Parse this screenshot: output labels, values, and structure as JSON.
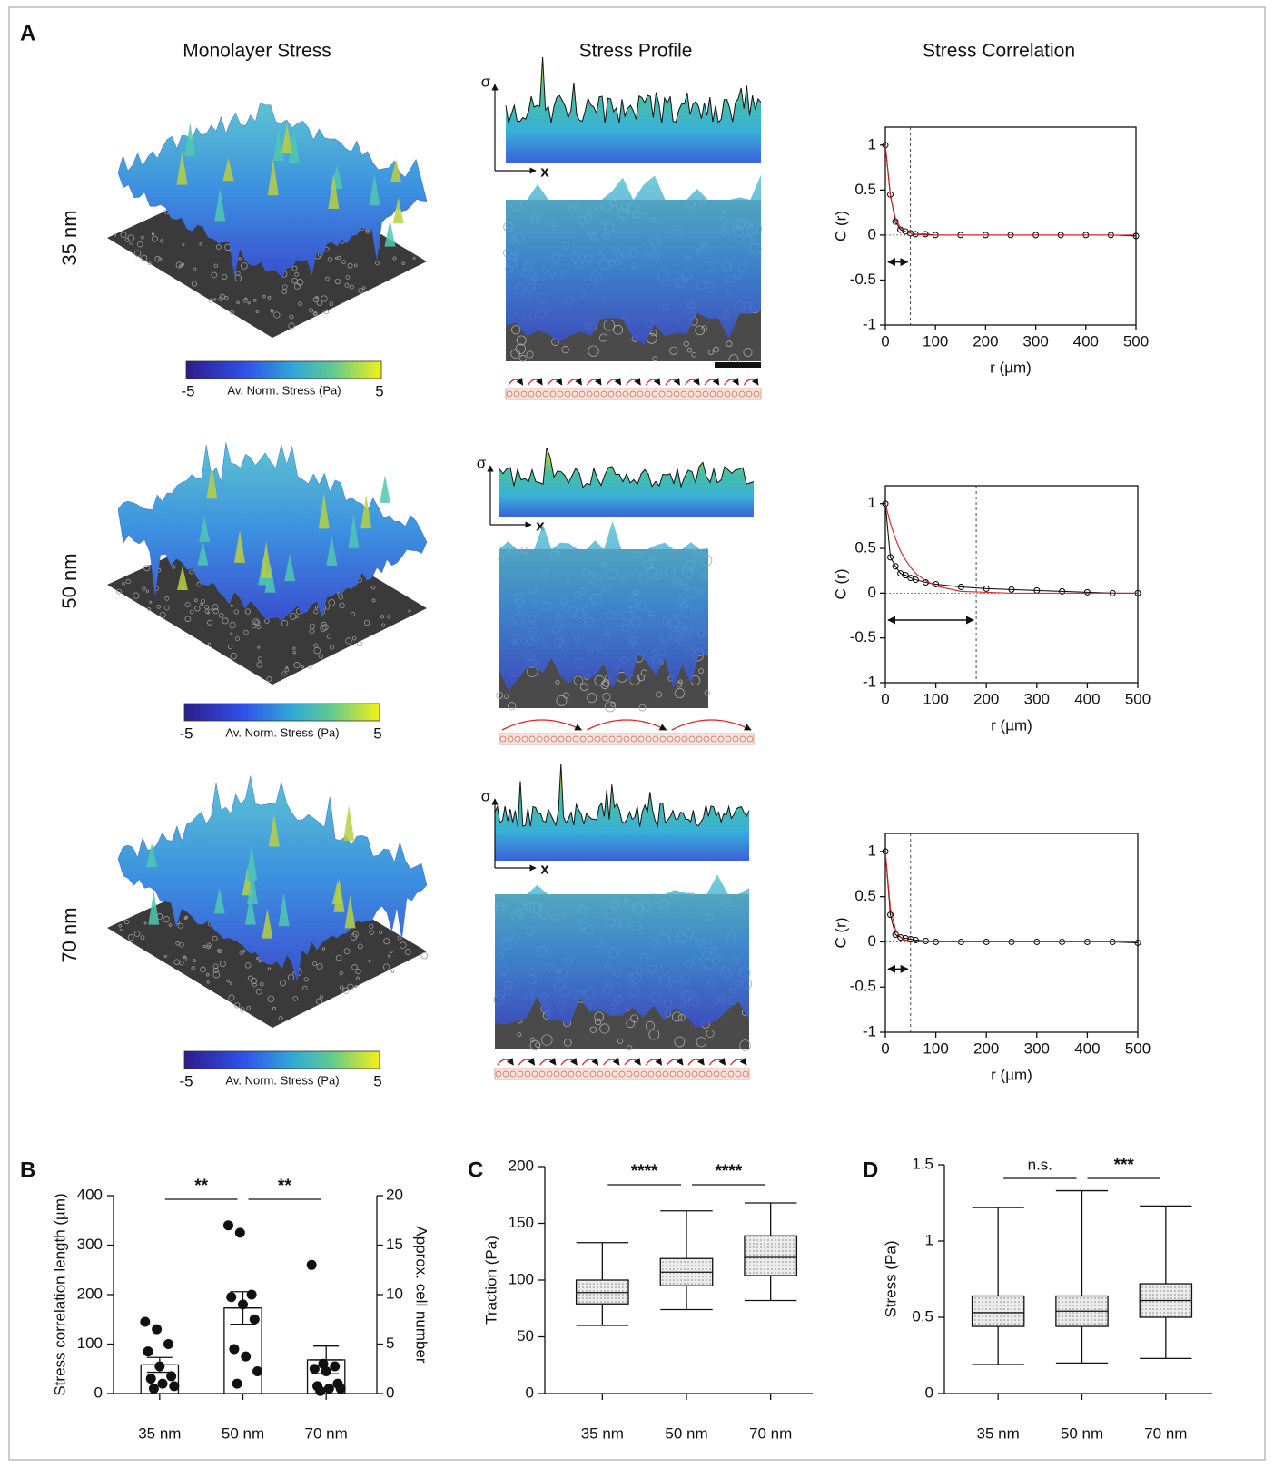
{
  "figure": {
    "panel_labels": [
      "A",
      "B",
      "C",
      "D"
    ],
    "column_titles": [
      "Monolayer Stress",
      "Stress Profile",
      "Stress Correlation"
    ],
    "row_labels": [
      "35 nm",
      "50 nm",
      "70 nm"
    ],
    "colorbars": [
      {
        "lim": [
          -5,
          5
        ],
        "label": "Av. Norm. Stress (Pa)"
      },
      {
        "lim": [
          -5,
          5
        ],
        "label": "Av. Norm. Stress (Pa)"
      },
      {
        "lim": [
          -5,
          5
        ],
        "label": "Av. Norm. Stress (Pa)"
      }
    ],
    "profile_axes": [
      {
        "y": "σ",
        "x": "x"
      },
      {
        "y": "σ",
        "x": "x"
      },
      {
        "y": "σ",
        "x": "x"
      }
    ]
  },
  "chart_data": [
    {
      "type": "line",
      "xlabel": "r (µm)",
      "ylabel": "C (r)",
      "x": [
        0,
        10,
        20,
        30,
        40,
        50,
        60,
        80,
        100,
        150,
        200,
        250,
        300,
        350,
        400,
        450,
        500
      ],
      "series": [
        {
          "color": "#000000",
          "marker": "circle",
          "values": [
            1,
            0.45,
            0.15,
            0.06,
            0.04,
            0.02,
            0.01,
            0.01,
            0,
            0,
            0,
            0,
            0,
            0,
            0,
            0,
            -0.01
          ]
        },
        {
          "color": "#e0201c",
          "values": [
            1,
            0.43,
            0.19,
            0.08,
            0.04,
            0.02,
            0.01,
            0,
            0,
            0,
            0,
            0,
            0,
            0,
            0,
            0,
            0
          ]
        }
      ],
      "correlation_length": 50,
      "xlim": [
        0,
        500
      ],
      "ylim": [
        -1,
        1.2
      ],
      "xticks": [
        0,
        100,
        200,
        300,
        400,
        500
      ],
      "yticks": [
        -1,
        -0.5,
        0,
        0.5,
        1
      ]
    },
    {
      "type": "line",
      "xlabel": "r (µm)",
      "ylabel": "C (r)",
      "x": [
        0,
        10,
        20,
        30,
        40,
        50,
        60,
        80,
        100,
        150,
        200,
        250,
        300,
        350,
        400,
        450,
        500
      ],
      "series": [
        {
          "color": "#000000",
          "marker": "circle",
          "values": [
            1,
            0.4,
            0.3,
            0.22,
            0.2,
            0.17,
            0.15,
            0.12,
            0.1,
            0.07,
            0.05,
            0.04,
            0.03,
            0.02,
            0.01,
            0,
            0
          ]
        },
        {
          "color": "#e0201c",
          "values": [
            1,
            0.78,
            0.61,
            0.47,
            0.37,
            0.29,
            0.22,
            0.14,
            0.08,
            0.02,
            0.01,
            0,
            0,
            0,
            0,
            0,
            0
          ]
        }
      ],
      "correlation_length": 180,
      "xlim": [
        0,
        500
      ],
      "ylim": [
        -1,
        1.2
      ],
      "xticks": [
        0,
        100,
        200,
        300,
        400,
        500
      ],
      "yticks": [
        -1,
        -0.5,
        0,
        0.5,
        1
      ]
    },
    {
      "type": "line",
      "xlabel": "r (µm)",
      "ylabel": "C (r)",
      "x": [
        0,
        10,
        20,
        30,
        40,
        50,
        60,
        80,
        100,
        150,
        200,
        250,
        300,
        350,
        400,
        450,
        500
      ],
      "series": [
        {
          "color": "#000000",
          "marker": "circle",
          "values": [
            1,
            0.3,
            0.08,
            0.05,
            0.04,
            0.03,
            0.02,
            0.01,
            0,
            0,
            0,
            0,
            0,
            0,
            0,
            0,
            -0.01
          ]
        },
        {
          "color": "#e0201c",
          "values": [
            1,
            0.37,
            0.14,
            0.05,
            0.02,
            0.01,
            0,
            0,
            0,
            0,
            0,
            0,
            0,
            0,
            0,
            0,
            0
          ]
        }
      ],
      "correlation_length": 50,
      "xlim": [
        0,
        500
      ],
      "ylim": [
        -1,
        1.2
      ],
      "xticks": [
        0,
        100,
        200,
        300,
        400,
        500
      ],
      "yticks": [
        -1,
        -0.5,
        0,
        0.5,
        1
      ]
    },
    {
      "type": "bar",
      "ylabel": "Stress correlation length (µm)",
      "y2label": "Approx. cell number",
      "categories": [
        "35 nm",
        "50 nm",
        "70 nm"
      ],
      "values": [
        58,
        173,
        68
      ],
      "errors": [
        15,
        33,
        28
      ],
      "points": [
        [
          145,
          130,
          100,
          85,
          55,
          35,
          30,
          20,
          15,
          10
        ],
        [
          340,
          325,
          200,
          195,
          180,
          150,
          90,
          75,
          45,
          20
        ],
        [
          260,
          60,
          55,
          50,
          45,
          20,
          15,
          10,
          10,
          5
        ]
      ],
      "color": "#ffffff",
      "ylim": [
        0,
        400
      ],
      "yticks": [
        0,
        100,
        200,
        300,
        400
      ],
      "y2lim": [
        0,
        20
      ],
      "y2ticks": [
        0,
        5,
        10,
        15,
        20
      ],
      "significance": [
        {
          "pair": [
            "35 nm",
            "50 nm"
          ],
          "label": "**"
        },
        {
          "pair": [
            "50 nm",
            "70 nm"
          ],
          "label": "**"
        }
      ]
    },
    {
      "type": "box",
      "ylabel": "Traction  (Pa)",
      "categories": [
        "35 nm",
        "50 nm",
        "70 nm"
      ],
      "boxes": [
        {
          "min": 60,
          "q1": 79,
          "median": 89,
          "q3": 100,
          "max": 133
        },
        {
          "min": 74,
          "q1": 95,
          "median": 107,
          "q3": 119,
          "max": 161
        },
        {
          "min": 82,
          "q1": 104,
          "median": 120,
          "q3": 139,
          "max": 168
        }
      ],
      "color": "#e4e4e4",
      "ylim": [
        0,
        200
      ],
      "yticks": [
        0,
        50,
        100,
        150,
        200
      ],
      "significance": [
        {
          "pair": [
            "35 nm",
            "50 nm"
          ],
          "label": "****"
        },
        {
          "pair": [
            "50 nm",
            "70 nm"
          ],
          "label": "****"
        }
      ]
    },
    {
      "type": "box",
      "ylabel": "Stress  (Pa)",
      "categories": [
        "35 nm",
        "50 nm",
        "70 nm"
      ],
      "boxes": [
        {
          "min": 0.19,
          "q1": 0.44,
          "median": 0.53,
          "q3": 0.64,
          "max": 1.22
        },
        {
          "min": 0.2,
          "q1": 0.44,
          "median": 0.54,
          "q3": 0.64,
          "max": 1.33
        },
        {
          "min": 0.23,
          "q1": 0.5,
          "median": 0.61,
          "q3": 0.72,
          "max": 1.23
        }
      ],
      "color": "#e4e4e4",
      "ylim": [
        0,
        1.5
      ],
      "yticks": [
        0,
        0.5,
        1,
        1.5
      ],
      "significance": [
        {
          "pair": [
            "35 nm",
            "50 nm"
          ],
          "label": "n.s."
        },
        {
          "pair": [
            "50 nm",
            "70 nm"
          ],
          "label": "***"
        }
      ]
    }
  ]
}
